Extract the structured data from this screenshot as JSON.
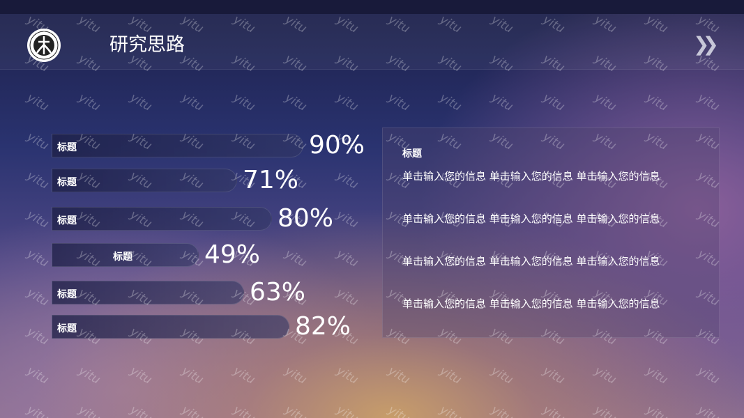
{
  "header": {
    "title": "研究思路",
    "logo_icon": "university-seal-icon",
    "next_icon": "double-chevron-right-icon"
  },
  "bars": [
    {
      "label": "标题",
      "percent": 90,
      "text": "90%"
    },
    {
      "label": "标题",
      "percent": 71,
      "text": "71%"
    },
    {
      "label": "标题",
      "percent": 80,
      "text": "80%"
    },
    {
      "label": "标题",
      "percent": 49,
      "text": "49%"
    },
    {
      "label": "标题",
      "percent": 63,
      "text": "63%"
    },
    {
      "label": "标题",
      "percent": 82,
      "text": "82%"
    }
  ],
  "panel": {
    "title": "标题",
    "paragraphs": [
      "单击输入您的信息 单击输入您的信息 单击输入您的信息",
      "单击输入您的信息 单击输入您的信息 单击输入您的信息",
      "单击输入您的信息 单击输入您的信息 单击输入您的信息",
      "单击输入您的信息 单击输入您的信息 单击输入您的信息"
    ]
  },
  "watermark": "yitu"
}
